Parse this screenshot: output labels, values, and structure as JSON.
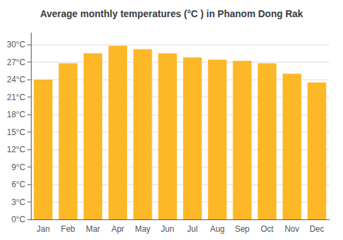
{
  "chart_data": {
    "type": "bar",
    "title": "Average monthly temperatures (°C ) in Phanom Dong Rak",
    "categories": [
      "Jan",
      "Feb",
      "Mar",
      "Apr",
      "May",
      "Jun",
      "Jul",
      "Aug",
      "Sep",
      "Oct",
      "Nov",
      "Dec"
    ],
    "values": [
      24.0,
      26.8,
      28.5,
      29.8,
      29.2,
      28.5,
      27.8,
      27.4,
      27.2,
      26.8,
      25.0,
      23.5
    ],
    "color": "#FDB827",
    "ylim": [
      0,
      32
    ],
    "yticks": [
      {
        "value": 0,
        "label": "0°C"
      },
      {
        "value": 3,
        "label": "3°C"
      },
      {
        "value": 6,
        "label": "6°C"
      },
      {
        "value": 9,
        "label": "9°C"
      },
      {
        "value": 12,
        "label": "12°C"
      },
      {
        "value": 15,
        "label": "15°C"
      },
      {
        "value": 18,
        "label": "18°C"
      },
      {
        "value": 21,
        "label": "21°C"
      },
      {
        "value": 24,
        "label": "24°C"
      },
      {
        "value": 27,
        "label": "27°C"
      },
      {
        "value": 30,
        "label": "30°C"
      }
    ],
    "grid": true
  }
}
